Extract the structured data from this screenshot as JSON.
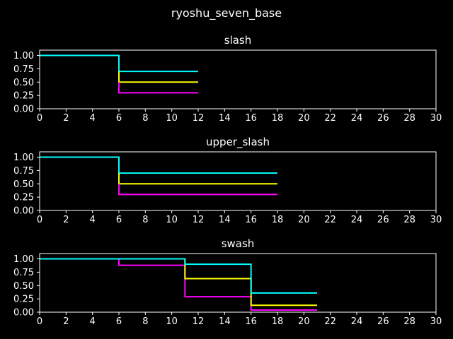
{
  "figure": {
    "suptitle": "ryoshu_seven_base",
    "background": "#000000",
    "foreground": "#ffffff"
  },
  "series_colors": [
    "#00ffff",
    "#ffff00",
    "#ff00ff"
  ],
  "chart_data": [
    {
      "type": "line",
      "style": "step",
      "title": "slash",
      "xlabel": "",
      "ylabel": "",
      "xlim": [
        0,
        30
      ],
      "ylim": [
        0,
        1.1
      ],
      "xticks": [
        0,
        2,
        4,
        6,
        8,
        10,
        12,
        14,
        16,
        18,
        20,
        22,
        24,
        26,
        28,
        30
      ],
      "yticks": [
        "0.00",
        "0.25",
        "0.50",
        "0.75",
        "1.00"
      ],
      "grid": false,
      "series": [
        {
          "color": "#00ffff",
          "points": [
            [
              0,
              1.0
            ],
            [
              6,
              1.0
            ],
            [
              6,
              0.7
            ],
            [
              12,
              0.7
            ]
          ]
        },
        {
          "color": "#ffff00",
          "points": [
            [
              6,
              0.7
            ],
            [
              6,
              0.5
            ],
            [
              12,
              0.5
            ]
          ]
        },
        {
          "color": "#ff00ff",
          "points": [
            [
              6,
              0.5
            ],
            [
              6,
              0.3
            ],
            [
              12,
              0.3
            ]
          ]
        }
      ]
    },
    {
      "type": "line",
      "style": "step",
      "title": "upper_slash",
      "xlabel": "",
      "ylabel": "",
      "xlim": [
        0,
        30
      ],
      "ylim": [
        0,
        1.1
      ],
      "xticks": [
        0,
        2,
        4,
        6,
        8,
        10,
        12,
        14,
        16,
        18,
        20,
        22,
        24,
        26,
        28,
        30
      ],
      "yticks": [
        "0.00",
        "0.25",
        "0.50",
        "0.75",
        "1.00"
      ],
      "grid": false,
      "series": [
        {
          "color": "#00ffff",
          "points": [
            [
              0,
              1.0
            ],
            [
              6,
              1.0
            ],
            [
              6,
              0.7
            ],
            [
              18,
              0.7
            ]
          ]
        },
        {
          "color": "#ffff00",
          "points": [
            [
              6,
              0.7
            ],
            [
              6,
              0.5
            ],
            [
              18,
              0.5
            ]
          ]
        },
        {
          "color": "#ff00ff",
          "points": [
            [
              6,
              0.5
            ],
            [
              6,
              0.3
            ],
            [
              18,
              0.3
            ]
          ]
        }
      ]
    },
    {
      "type": "line",
      "style": "step",
      "title": "swash",
      "xlabel": "",
      "ylabel": "",
      "xlim": [
        0,
        30
      ],
      "ylim": [
        0,
        1.1
      ],
      "xticks": [
        0,
        2,
        4,
        6,
        8,
        10,
        12,
        14,
        16,
        18,
        20,
        22,
        24,
        26,
        28,
        30
      ],
      "yticks": [
        "0.00",
        "0.25",
        "0.50",
        "0.75",
        "1.00"
      ],
      "grid": false,
      "series": [
        {
          "color": "#ff00ff",
          "points": [
            [
              0,
              1.0
            ],
            [
              6,
              1.0
            ],
            [
              6,
              0.88
            ],
            [
              11,
              0.88
            ],
            [
              11,
              0.29
            ],
            [
              16,
              0.29
            ],
            [
              16,
              0.04
            ],
            [
              21,
              0.04
            ]
          ]
        },
        {
          "color": "#ffff00",
          "points": [
            [
              0,
              1.0
            ],
            [
              11,
              1.0
            ],
            [
              11,
              0.63
            ],
            [
              16,
              0.63
            ],
            [
              16,
              0.13
            ],
            [
              21,
              0.13
            ]
          ]
        },
        {
          "color": "#00ffff",
          "points": [
            [
              0,
              1.0
            ],
            [
              11,
              1.0
            ],
            [
              11,
              0.9
            ],
            [
              16,
              0.9
            ],
            [
              16,
              0.36
            ],
            [
              21,
              0.36
            ]
          ]
        }
      ]
    }
  ]
}
